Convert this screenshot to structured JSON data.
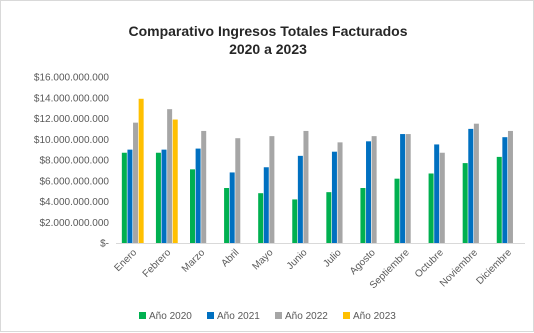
{
  "chart_data": {
    "type": "bar",
    "title_lines": [
      "Comparativo  Ingresos Totales Facturados",
      "2020 a 2023"
    ],
    "categories": [
      "Enero",
      "Febrero",
      "Marzo",
      "Abril",
      "Mayo",
      "Junio",
      "Julio",
      "Agosto",
      "Septiembre",
      "Octubre",
      "Noviembre",
      "Diciembre"
    ],
    "series": [
      {
        "name": "Año 2020",
        "color": "#00b050",
        "values": [
          8700000000,
          8700000000,
          7100000000,
          5300000000,
          4800000000,
          4200000000,
          4900000000,
          5300000000,
          6200000000,
          6700000000,
          7700000000,
          8300000000
        ]
      },
      {
        "name": "Año 2021",
        "color": "#0070c0",
        "values": [
          9000000000,
          9000000000,
          9100000000,
          6800000000,
          7300000000,
          8400000000,
          8800000000,
          9800000000,
          10500000000,
          9500000000,
          11000000000,
          10200000000
        ]
      },
      {
        "name": "Año 2022",
        "color": "#a6a6a6",
        "values": [
          11600000000,
          12900000000,
          10800000000,
          10100000000,
          10300000000,
          10800000000,
          9700000000,
          10300000000,
          10500000000,
          8700000000,
          11500000000,
          10800000000
        ]
      },
      {
        "name": "Año 2023",
        "color": "#ffc000",
        "values": [
          13900000000,
          11900000000,
          null,
          null,
          null,
          null,
          null,
          null,
          null,
          null,
          null,
          null
        ]
      }
    ],
    "ylim": [
      0,
      16000000000
    ],
    "y_ticks": [
      "$16.000.000.000",
      "$14.000.000.000",
      "$12.000.000.000",
      "$10.000.000.000",
      "$8.000.000.000",
      "$6.000.000.000",
      "$4.000.000.000",
      "$2.000.000.000",
      "$-"
    ],
    "y_tick_values": [
      16000000000,
      14000000000,
      12000000000,
      10000000000,
      8000000000,
      6000000000,
      4000000000,
      2000000000,
      0
    ],
    "grid": false,
    "legend_position": "bottom"
  }
}
